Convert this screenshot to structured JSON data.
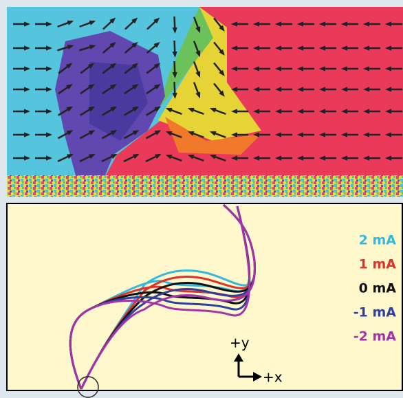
{
  "legend": [
    {
      "label": "2 mA",
      "color": "#35b8dc"
    },
    {
      "label": "1 mA",
      "color": "#e0302a"
    },
    {
      "label": "0 mA",
      "color": "#111111"
    },
    {
      "label": "-1 mA",
      "color": "#2f3f9e"
    },
    {
      "label": "-2 mA",
      "color": "#a334a8"
    }
  ],
  "axes": {
    "y": "+y",
    "x": "+x"
  }
}
